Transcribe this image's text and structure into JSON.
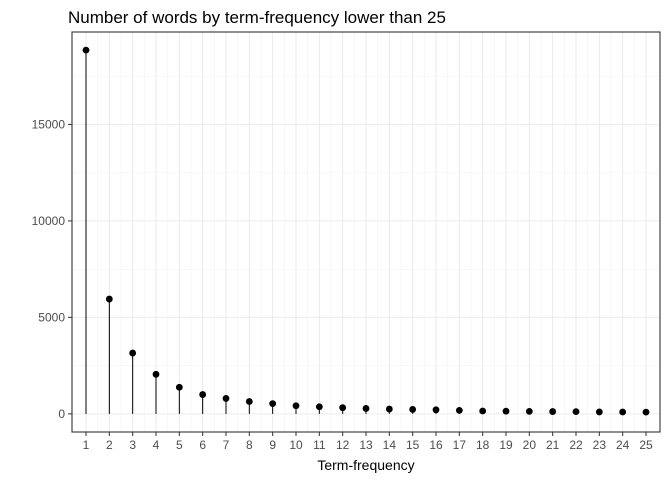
{
  "chart_data": {
    "type": "lollipop",
    "title": "Number of words by term-frequency lower than 25",
    "xlabel": "Term-frequency",
    "ylabel": "",
    "x": [
      1,
      2,
      3,
      4,
      5,
      6,
      7,
      8,
      9,
      10,
      11,
      12,
      13,
      14,
      15,
      16,
      17,
      18,
      19,
      20,
      21,
      22,
      23,
      24,
      25
    ],
    "values": [
      18850,
      5950,
      3150,
      2050,
      1380,
      1000,
      800,
      640,
      530,
      420,
      370,
      320,
      280,
      250,
      230,
      210,
      180,
      150,
      140,
      130,
      120,
      115,
      100,
      95,
      90
    ],
    "y_ticks": [
      0,
      5000,
      10000,
      15000
    ],
    "x_ticks": [
      1,
      2,
      3,
      4,
      5,
      6,
      7,
      8,
      9,
      10,
      11,
      12,
      13,
      14,
      15,
      16,
      17,
      18,
      19,
      20,
      21,
      22,
      23,
      24,
      25
    ],
    "xlim": [
      0.4,
      25.6
    ],
    "ylim": [
      -940,
      19790
    ],
    "grid": true,
    "theme": "bw",
    "colors": {
      "stem": "#000000",
      "point": "#000000",
      "grid": "#ebebeb",
      "border": "#333333"
    }
  }
}
